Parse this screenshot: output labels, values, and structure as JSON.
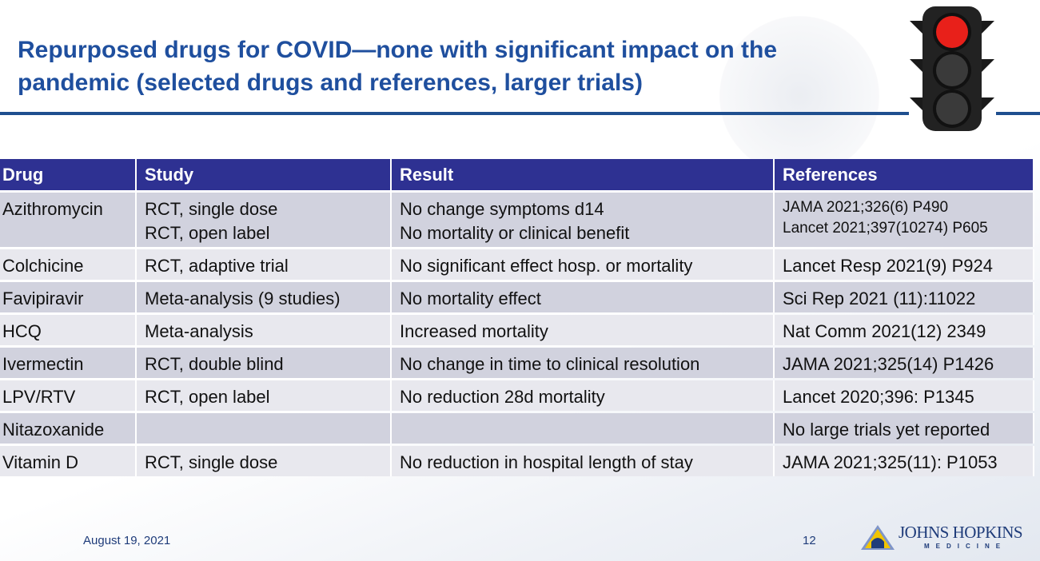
{
  "title": "Repurposed drugs for COVID—none with significant impact on the pandemic (selected drugs and references, larger trials)",
  "colors": {
    "title": "#1f4f9e",
    "header_bg": "#2e3192",
    "row_odd": "#d1d2de",
    "row_even": "#e8e8ee",
    "traffic_light_active": "red"
  },
  "table": {
    "headers": [
      "Drug",
      "Study",
      "Result",
      "References"
    ],
    "rows": [
      {
        "drug": "Azithromycin",
        "study": [
          "RCT, single dose",
          "RCT, open label"
        ],
        "result": [
          "No change symptoms d14",
          "No mortality or clinical benefit"
        ],
        "references": [
          "JAMA 2021;326(6) P490",
          "Lancet 2021;397(10274) P605"
        ]
      },
      {
        "drug": "Colchicine",
        "study": [
          "RCT, adaptive trial"
        ],
        "result": [
          "No significant effect hosp. or mortality"
        ],
        "references": [
          "Lancet Resp 2021(9) P924"
        ]
      },
      {
        "drug": "Favipiravir",
        "study": [
          "Meta-analysis (9 studies)"
        ],
        "result": [
          "No mortality effect"
        ],
        "references": [
          "Sci Rep 2021 (11):11022"
        ]
      },
      {
        "drug": "HCQ",
        "study": [
          "Meta-analysis"
        ],
        "result": [
          "Increased mortality"
        ],
        "references": [
          "Nat Comm 2021(12) 2349"
        ]
      },
      {
        "drug": "Ivermectin",
        "study": [
          "RCT, double blind"
        ],
        "result": [
          "No change in time to clinical resolution"
        ],
        "references": [
          "JAMA 2021;325(14) P1426"
        ]
      },
      {
        "drug": "LPV/RTV",
        "study": [
          "RCT, open label"
        ],
        "result": [
          "No reduction 28d mortality"
        ],
        "references": [
          "Lancet 2020;396: P1345"
        ]
      },
      {
        "drug": "Nitazoxanide",
        "study": [
          ""
        ],
        "result": [
          ""
        ],
        "references": [
          "No large trials yet reported"
        ]
      },
      {
        "drug": "Vitamin D",
        "study": [
          "RCT, single dose"
        ],
        "result": [
          "No reduction in hospital length of stay"
        ],
        "references": [
          "JAMA 2021;325(11): P1053"
        ]
      }
    ]
  },
  "footer": {
    "date": "August 19, 2021",
    "page": "12",
    "logo": "JOHNS HOPKINS",
    "logo_sub": "MEDICINE"
  }
}
